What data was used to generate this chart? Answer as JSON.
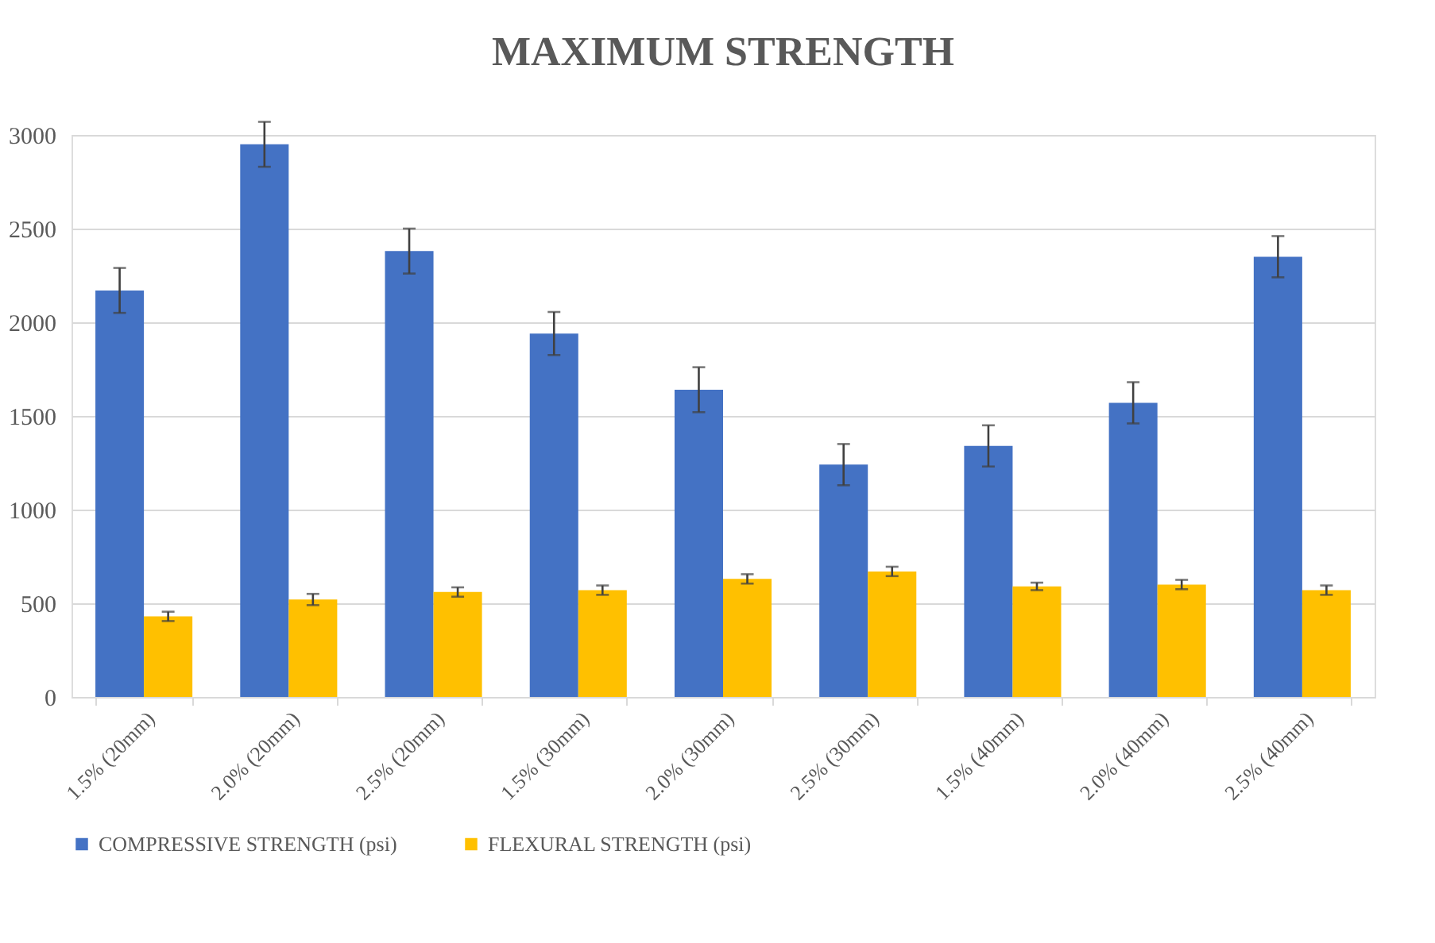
{
  "chart_data": {
    "type": "bar",
    "title": "MAXIMUM STRENGTH",
    "categories": [
      "1.5% (20mm)",
      "2.0% (20mm)",
      "2.5% (20mm)",
      "1.5% (30mm)",
      "2.0% (30mm)",
      "2.5% (30mm)",
      "1.5% (40mm)",
      "2.0% (40mm)",
      "2.5% (40mm)"
    ],
    "series": [
      {
        "name": "COMPRESSIVE STRENGTH (psi)",
        "color": "#4472c4",
        "values": [
          2170,
          2950,
          2380,
          1940,
          1640,
          1240,
          1340,
          1570,
          2350
        ],
        "errors": [
          120,
          120,
          120,
          115,
          120,
          110,
          110,
          110,
          110
        ]
      },
      {
        "name": "FLEXURAL STRENGTH (psi)",
        "color": "#ffc000",
        "values": [
          430,
          520,
          560,
          570,
          630,
          670,
          590,
          600,
          570
        ],
        "errors": [
          25,
          30,
          25,
          25,
          25,
          25,
          20,
          25,
          25
        ]
      }
    ],
    "ylim": [
      0,
      3000
    ],
    "yticks": [
      0,
      500,
      1000,
      1500,
      2000,
      2500,
      3000
    ],
    "grid": "y",
    "legend": "bottom"
  }
}
